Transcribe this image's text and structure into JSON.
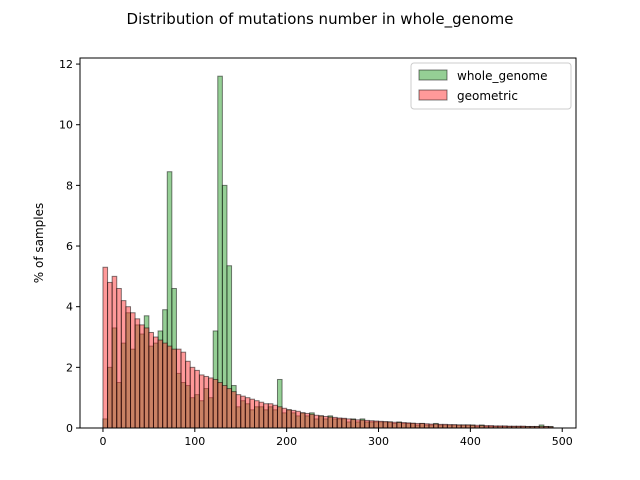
{
  "chart_data": {
    "type": "bar",
    "title": "Distribution of mutations number in whole_genome",
    "xlabel": "",
    "ylabel": "% of samples",
    "xlim": [
      -25,
      515
    ],
    "ylim": [
      0,
      12.2
    ],
    "xticks": [
      0,
      100,
      200,
      300,
      400,
      500
    ],
    "yticks": [
      0,
      2,
      4,
      6,
      8,
      10,
      12
    ],
    "legend_position": "top-right",
    "bin_width": 5,
    "series": [
      {
        "name": "whole_genome",
        "color": "#2ca02c",
        "bin_starts": [
          0,
          5,
          10,
          15,
          20,
          25,
          30,
          35,
          40,
          45,
          50,
          55,
          60,
          65,
          70,
          75,
          80,
          85,
          90,
          95,
          100,
          105,
          110,
          115,
          120,
          125,
          130,
          135,
          140,
          145,
          150,
          155,
          160,
          165,
          170,
          175,
          180,
          185,
          190,
          195,
          200,
          205,
          210,
          215,
          220,
          225,
          230,
          235,
          240,
          245,
          250,
          255,
          260,
          265,
          270,
          275,
          280,
          285,
          290,
          295,
          300,
          305,
          310,
          315,
          320,
          325,
          330,
          335,
          340,
          345,
          350,
          355,
          360,
          365,
          370,
          375,
          380,
          385,
          390,
          395,
          400,
          405,
          410,
          415,
          420,
          425,
          430,
          435,
          440,
          445,
          450,
          455,
          460,
          465,
          470,
          475,
          480,
          485
        ],
        "values": [
          0.3,
          2.0,
          3.3,
          1.5,
          2.8,
          3.8,
          2.6,
          3.4,
          3.1,
          3.7,
          2.7,
          2.8,
          3.2,
          3.9,
          8.45,
          4.6,
          1.8,
          1.5,
          1.4,
          1.0,
          1.1,
          0.9,
          1.3,
          1.0,
          3.2,
          11.6,
          8.0,
          5.35,
          1.4,
          0.7,
          0.9,
          0.8,
          0.6,
          0.7,
          0.7,
          0.6,
          0.7,
          0.6,
          1.6,
          0.5,
          0.6,
          0.5,
          0.4,
          0.5,
          0.4,
          0.5,
          0.3,
          0.4,
          0.3,
          0.4,
          0.3,
          0.3,
          0.3,
          0.2,
          0.3,
          0.2,
          0.3,
          0.2,
          0.2,
          0.2,
          0.2,
          0.2,
          0.2,
          0.15,
          0.2,
          0.15,
          0.15,
          0.15,
          0.1,
          0.15,
          0.1,
          0.1,
          0.15,
          0.1,
          0.1,
          0.1,
          0.1,
          0.1,
          0.1,
          0.1,
          0.1,
          0.05,
          0.1,
          0.05,
          0.05,
          0.05,
          0.05,
          0.05,
          0.05,
          0.05,
          0.05,
          0.05,
          0.05,
          0.05,
          0.05,
          0.1,
          0.05,
          0.05
        ]
      },
      {
        "name": "geometric",
        "color": "#ff3333",
        "bin_starts": [
          0,
          5,
          10,
          15,
          20,
          25,
          30,
          35,
          40,
          45,
          50,
          55,
          60,
          65,
          70,
          75,
          80,
          85,
          90,
          95,
          100,
          105,
          110,
          115,
          120,
          125,
          130,
          135,
          140,
          145,
          150,
          155,
          160,
          165,
          170,
          175,
          180,
          185,
          190,
          195,
          200,
          205,
          210,
          215,
          220,
          225,
          230,
          235,
          240,
          245,
          250,
          255,
          260,
          265,
          270,
          275,
          280,
          285,
          290,
          295,
          300,
          305,
          310,
          315,
          320,
          325,
          330,
          335,
          340,
          345,
          350,
          355,
          360,
          365,
          370,
          375,
          380,
          385,
          390,
          395,
          400,
          405,
          410,
          415,
          420,
          425,
          430,
          435,
          440,
          445,
          450,
          455,
          460,
          465,
          470,
          475,
          480,
          485
        ],
        "values": [
          5.3,
          4.8,
          5.0,
          4.6,
          4.2,
          4.0,
          3.8,
          3.6,
          3.4,
          3.3,
          3.15,
          3.0,
          2.9,
          2.8,
          2.7,
          2.6,
          2.6,
          2.5,
          2.2,
          2.0,
          1.9,
          1.75,
          1.7,
          1.65,
          1.6,
          1.5,
          1.4,
          1.3,
          1.2,
          1.1,
          1.05,
          1.0,
          0.95,
          0.9,
          0.85,
          0.8,
          0.8,
          0.75,
          0.7,
          0.65,
          0.6,
          0.58,
          0.55,
          0.5,
          0.48,
          0.45,
          0.42,
          0.4,
          0.38,
          0.36,
          0.35,
          0.33,
          0.32,
          0.3,
          0.28,
          0.27,
          0.26,
          0.25,
          0.24,
          0.23,
          0.22,
          0.21,
          0.2,
          0.19,
          0.18,
          0.18,
          0.17,
          0.16,
          0.15,
          0.15,
          0.14,
          0.13,
          0.13,
          0.12,
          0.12,
          0.11,
          0.11,
          0.1,
          0.1,
          0.1,
          0.09,
          0.09,
          0.08,
          0.08,
          0.08,
          0.07,
          0.07,
          0.07,
          0.06,
          0.06,
          0.06,
          0.06,
          0.05,
          0.05,
          0.05,
          0.05,
          0.05,
          0.04
        ]
      }
    ]
  }
}
